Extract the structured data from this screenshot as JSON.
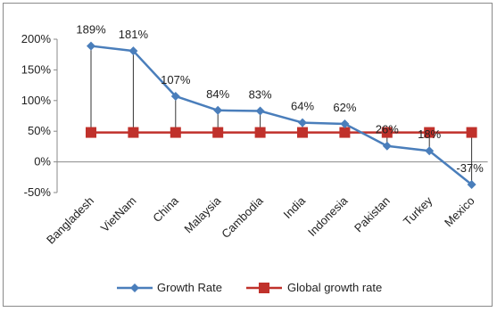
{
  "chart_data": {
    "type": "line",
    "categories": [
      "Bangladesh",
      "VietNam",
      "China",
      "Malaysia",
      "Cambodia",
      "India",
      "Indonesia",
      "Pakistan",
      "Turkey",
      "Mexico"
    ],
    "series": [
      {
        "name": "Growth Rate",
        "values": [
          189,
          181,
          107,
          84,
          83,
          64,
          62,
          26,
          18,
          -37
        ],
        "labels": [
          "189%",
          "181%",
          "107%",
          "84%",
          "83%",
          "64%",
          "62%",
          "26%",
          "18%",
          "-37%"
        ],
        "color": "#4a7ebb",
        "marker": "diamond"
      },
      {
        "name": "Global growth rate",
        "values": [
          48,
          48,
          48,
          48,
          48,
          48,
          48,
          48,
          48,
          48
        ],
        "color": "#c0312b",
        "marker": "square"
      }
    ],
    "y_ticks": [
      "200%",
      "150%",
      "100%",
      "50%",
      "0%",
      "-50%"
    ],
    "ylim": [
      -50,
      200
    ],
    "drop_lines": true,
    "grid": false,
    "legend": "bottom"
  }
}
